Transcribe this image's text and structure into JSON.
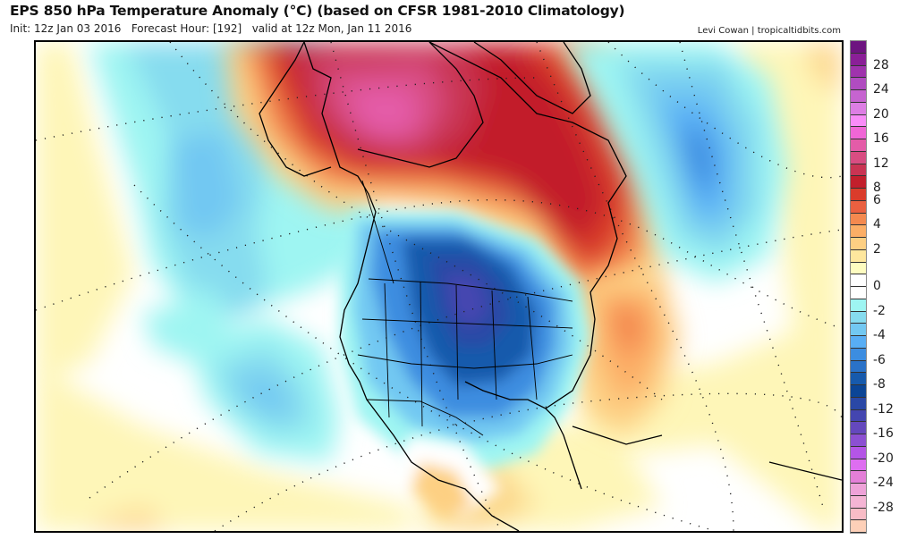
{
  "header": {
    "title": "EPS 850 hPa Temperature Anomaly (°C) (based on CFSR 1981-2010 Climatology)",
    "init": "Init: 12z Jan 03 2016",
    "forecast_hour": "Forecast Hour: [192]",
    "valid": "valid at 12z Mon, Jan 11 2016",
    "credit": "Levi Cowan | tropicaltidbits.com"
  },
  "map": {
    "variable": "850 hPa Temperature Anomaly",
    "units": "°C",
    "model": "EPS",
    "region": "North America",
    "features": [
      {
        "name": "warm-anomaly-alaska-yukon",
        "max_anomaly": 18
      },
      {
        "name": "warm-anomaly-canadian-arctic-quebec",
        "max_anomaly": 10
      },
      {
        "name": "cold-anomaly-central-us",
        "min_anomaly": -14
      },
      {
        "name": "cold-anomaly-north-atlantic",
        "min_anomaly": -6
      },
      {
        "name": "cold-anomaly-north-pacific",
        "min_anomaly": -4
      },
      {
        "name": "warm-anomaly-western-atlantic",
        "max_anomaly": 6
      }
    ]
  },
  "colorbar": {
    "labels": [
      "28",
      "24",
      "20",
      "16",
      "12",
      "8",
      "6",
      "4",
      "2",
      "0",
      "-2",
      "-4",
      "-6",
      "-8",
      "-12",
      "-16",
      "-20",
      "-24",
      "-28"
    ],
    "colors": [
      "#6d1480",
      "#8a1f97",
      "#9f33ad",
      "#b04cc0",
      "#c664d0",
      "#dd7ee4",
      "#f98cf8",
      "#f066d6",
      "#e45ca8",
      "#d84d82",
      "#c93453",
      "#c21f2c",
      "#da3c2b",
      "#ea6040",
      "#f4894f",
      "#fcae66",
      "#fdcf83",
      "#fee79e",
      "#fefcc0",
      "#ffffff",
      "#ffffff",
      "#9ef5f2",
      "#86dcef",
      "#72c8f2",
      "#58aef5",
      "#3c8de0",
      "#2a72c8",
      "#175aac",
      "#0b4596",
      "#2a48a6",
      "#4446b0",
      "#6448bd",
      "#8c50d2",
      "#b455e6",
      "#de6ef0",
      "#e47fd8",
      "#eea2d8",
      "#f4b4d4",
      "#f8bcc6",
      "#fdd0b8"
    ]
  }
}
